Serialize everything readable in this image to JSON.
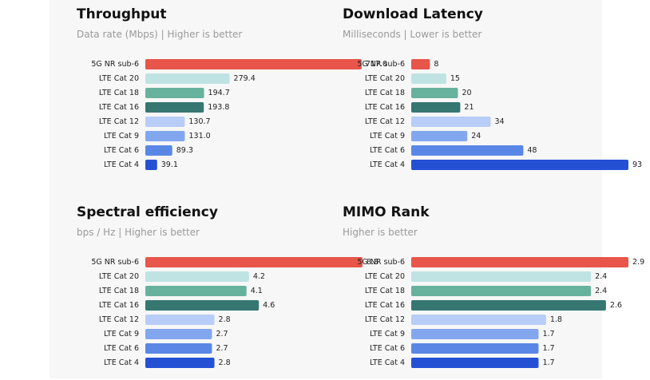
{
  "colors": {
    "5G NR sub-6": "#e8554a",
    "LTE Cat 20": "#bfe3e3",
    "LTE Cat 18": "#67b29c",
    "LTE Cat 16": "#367771",
    "LTE Cat 12": "#b8cdf8",
    "LTE Cat 9": "#82a7ef",
    "LTE Cat 6": "#5a87e6",
    "LTE Cat 4": "#2450d4"
  },
  "chart_data": [
    {
      "type": "bar",
      "orientation": "horizontal",
      "title": "Throughput",
      "subtitle": "Data rate (Mbps) | Higher is better",
      "categories": [
        "5G NR sub-6",
        "LTE Cat 20",
        "LTE Cat 18",
        "LTE Cat 16",
        "LTE Cat 12",
        "LTE Cat 9",
        "LTE Cat 6",
        "LTE Cat 4"
      ],
      "values": [
        717.0,
        279.4,
        194.7,
        193.8,
        130.7,
        131.0,
        89.3,
        39.1
      ],
      "value_labels": [
        "717.0",
        "279.4",
        "194.7",
        "193.8",
        "130.7",
        "131.0",
        "89.3",
        "39.1"
      ],
      "xlim": [
        0,
        720
      ]
    },
    {
      "type": "bar",
      "orientation": "horizontal",
      "title": "Download Latency",
      "subtitle": "Milliseconds | Lower is better",
      "categories": [
        "5G NR sub-6",
        "LTE Cat 20",
        "LTE Cat 18",
        "LTE Cat 16",
        "LTE Cat 12",
        "LTE Cat 9",
        "LTE Cat 6",
        "LTE Cat 4"
      ],
      "values": [
        8,
        15,
        20,
        21,
        34,
        24,
        48,
        93
      ],
      "value_labels": [
        "8",
        "15",
        "20",
        "21",
        "34",
        "24",
        "48",
        "93"
      ],
      "xlim": [
        0,
        93
      ]
    },
    {
      "type": "bar",
      "orientation": "horizontal",
      "title": "Spectral efficiency",
      "subtitle": "bps / Hz | Higher is better",
      "categories": [
        "5G NR sub-6",
        "LTE Cat 20",
        "LTE Cat 18",
        "LTE Cat 16",
        "LTE Cat 12",
        "LTE Cat 9",
        "LTE Cat 6",
        "LTE Cat 4"
      ],
      "values": [
        8.8,
        4.2,
        4.1,
        4.6,
        2.8,
        2.7,
        2.7,
        2.8
      ],
      "value_labels": [
        "8.8",
        "4.2",
        "4.1",
        "4.6",
        "2.8",
        "2.7",
        "2.7",
        "2.8"
      ],
      "xlim": [
        0,
        8.8
      ]
    },
    {
      "type": "bar",
      "orientation": "horizontal",
      "title": "MIMO Rank",
      "subtitle": "Higher is better",
      "categories": [
        "5G NR sub-6",
        "LTE Cat 20",
        "LTE Cat 18",
        "LTE Cat 16",
        "LTE Cat 12",
        "LTE Cat 9",
        "LTE Cat 6",
        "LTE Cat 4"
      ],
      "values": [
        2.9,
        2.4,
        2.4,
        2.6,
        1.8,
        1.7,
        1.7,
        1.7
      ],
      "value_labels": [
        "2.9",
        "2.4",
        "2.4",
        "2.6",
        "1.8",
        "1.7",
        "1.7",
        "1.7"
      ],
      "xlim": [
        0,
        2.9
      ]
    }
  ]
}
